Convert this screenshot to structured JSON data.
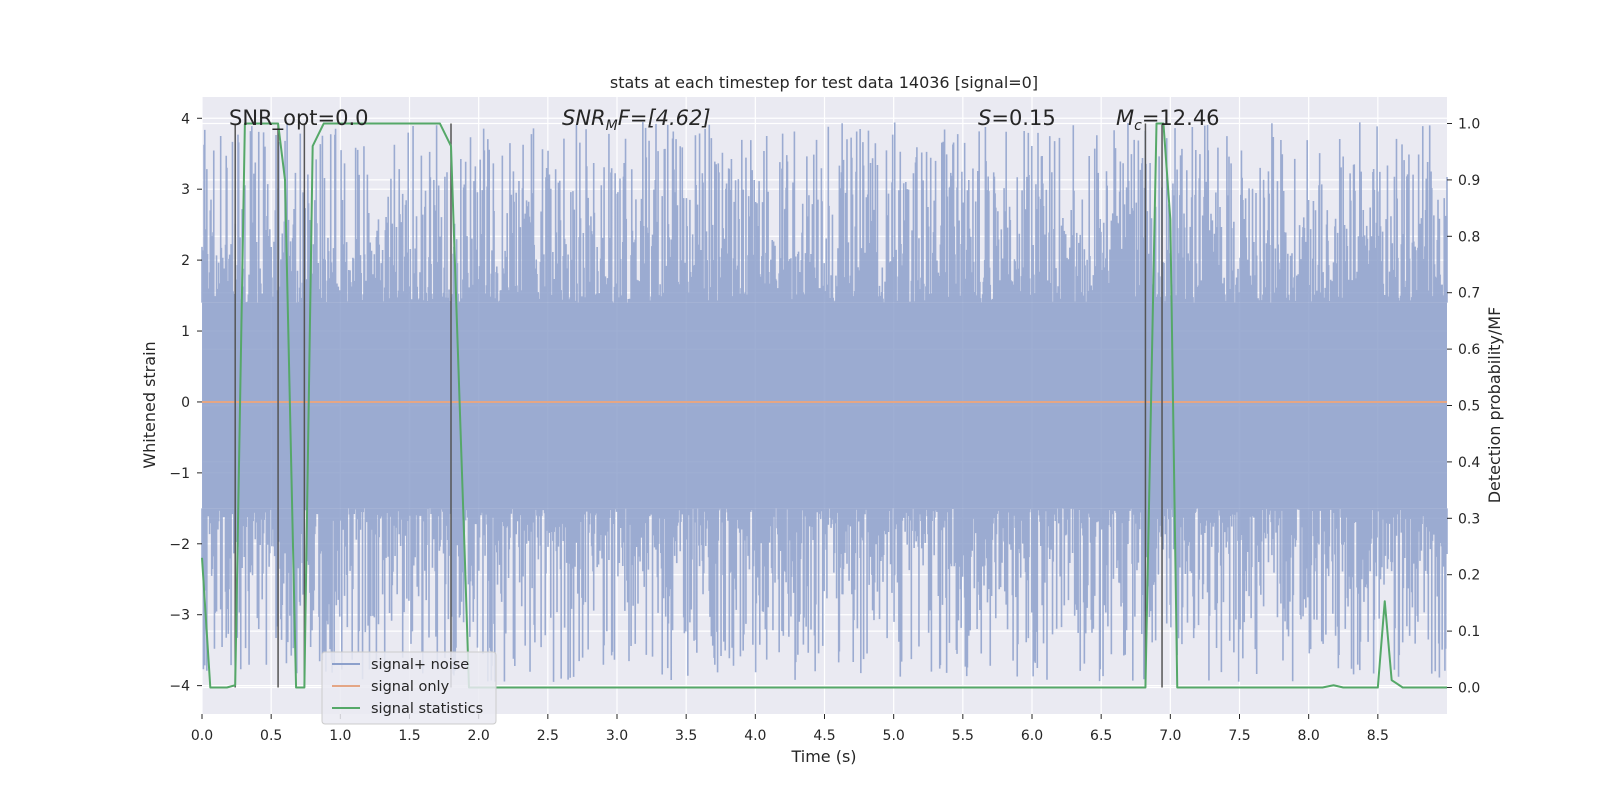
{
  "chart_data": {
    "type": "line",
    "title": "stats at each timestep for test data 14036 [signal=0]",
    "xlabel": "Time (s)",
    "ylabel": "Whitened strain",
    "y2label": "Detection probability/MF",
    "xlim": [
      0.0,
      9.0
    ],
    "ylim": [
      -4.4,
      4.3
    ],
    "y2lim": [
      -0.047,
      1.047
    ],
    "xticks": [
      0.0,
      0.5,
      1.0,
      1.5,
      2.0,
      2.5,
      3.0,
      3.5,
      4.0,
      4.5,
      5.0,
      5.5,
      6.0,
      6.5,
      7.0,
      7.5,
      8.0,
      8.5
    ],
    "xtick_labels": [
      "0.0",
      "0.5",
      "1.0",
      "1.5",
      "2.0",
      "2.5",
      "3.0",
      "3.5",
      "4.0",
      "4.5",
      "5.0",
      "5.5",
      "6.0",
      "6.5",
      "7.0",
      "7.5",
      "8.0",
      "8.5"
    ],
    "yticks": [
      4,
      3,
      2,
      1,
      0,
      -1,
      -2,
      -3,
      -4
    ],
    "ytick_labels": [
      "4",
      "3",
      "2",
      "1",
      "0",
      "−1",
      "−2",
      "−3",
      "−4"
    ],
    "y2ticks": [
      1.0,
      0.9,
      0.8,
      0.7,
      0.6,
      0.5,
      0.4,
      0.3,
      0.2,
      0.1,
      0.0
    ],
    "y2tick_labels": [
      "1.0",
      "0.9",
      "0.8",
      "0.7",
      "0.6",
      "0.5",
      "0.4",
      "0.3",
      "0.2",
      "0.1",
      "0.0"
    ],
    "annotations": {
      "snr_opt": "SNR_opt=0.0",
      "snr_mf_prefix": "SNR",
      "snr_mf_sub": "M",
      "snr_mf_suffix": "F=[4.62]",
      "s_symbol": "S",
      "s_value": "=0.15",
      "mc_symbol": "M",
      "mc_sub": "c",
      "mc_value": "=12.46"
    },
    "series": [
      {
        "name": "signal+ noise",
        "color": "#8da0cb",
        "kind": "noise",
        "envelope_upper": 1.4,
        "envelope_lower": -1.5,
        "peak_max": 3.95,
        "trough_min": -3.95,
        "samples": 1800
      },
      {
        "name": "signal only",
        "color": "#e4a685",
        "kind": "constant",
        "value": 0.0
      },
      {
        "name": "signal statistics",
        "color": "#55a868",
        "axis": "right",
        "x": [
          0.0,
          0.06,
          0.18,
          0.24,
          0.31,
          0.55,
          0.6,
          0.68,
          0.71,
          0.74,
          0.8,
          0.88,
          1.72,
          1.8,
          1.9,
          1.93,
          2.0,
          6.8,
          6.82,
          6.9,
          6.95,
          7.0,
          7.05,
          8.1,
          8.18,
          8.25,
          8.5,
          8.55,
          8.6,
          8.68,
          9.0
        ],
        "y": [
          0.23,
          0.0,
          0.0,
          0.004,
          1.0,
          1.0,
          0.9,
          0.0,
          0.0,
          0.0,
          0.96,
          1.0,
          1.0,
          0.96,
          0.23,
          0.0,
          0.0,
          0.0,
          0.0,
          1.0,
          1.0,
          0.83,
          0.0,
          0.0,
          0.004,
          0.0,
          0.0,
          0.153,
          0.013,
          0.0,
          0.0
        ]
      }
    ],
    "vlines": [
      0.24,
      0.55,
      0.74,
      1.8,
      6.82,
      6.94
    ],
    "legend": {
      "position": "lower-left",
      "entries": [
        {
          "label": "signal+ noise",
          "color": "#8da0cb"
        },
        {
          "label": "signal only",
          "color": "#e4a685"
        },
        {
          "label": "signal statistics",
          "color": "#55a868"
        }
      ]
    },
    "grid": true
  }
}
